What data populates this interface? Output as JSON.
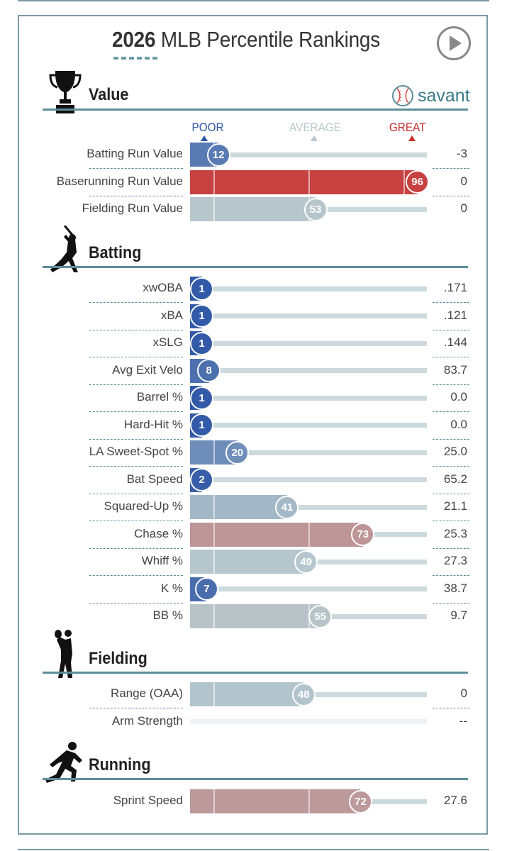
{
  "title": {
    "year": "2026",
    "text": "MLB Percentile Rankings"
  },
  "play_button": {
    "icon": "play-icon"
  },
  "brand": {
    "text": "savant",
    "icon": "baseball-icon"
  },
  "scale": {
    "poor": "POOR",
    "average": "AVERAGE",
    "great": "GREAT",
    "colors": {
      "poor": "#2d55a6",
      "average": "#b7c9cd",
      "great": "#c8302e"
    }
  },
  "chart_data": {
    "type": "bar",
    "title": "2026 MLB Percentile Rankings",
    "xlim": [
      0,
      100
    ],
    "sections": [
      {
        "id": "value",
        "name": "Value",
        "icon": "trophy-icon",
        "metrics": [
          {
            "label": "Batting Run Value",
            "percentile": 12,
            "value": "-3"
          },
          {
            "label": "Baserunning Run Value",
            "percentile": 96,
            "value": "0"
          },
          {
            "label": "Fielding Run Value",
            "percentile": 53,
            "value": "0"
          }
        ]
      },
      {
        "id": "batting",
        "name": "Batting",
        "icon": "batter-icon",
        "metrics": [
          {
            "label": "xwOBA",
            "percentile": 1,
            "value": ".171"
          },
          {
            "label": "xBA",
            "percentile": 1,
            "value": ".121"
          },
          {
            "label": "xSLG",
            "percentile": 1,
            "value": ".144"
          },
          {
            "label": "Avg Exit Velo",
            "percentile": 8,
            "value": "83.7"
          },
          {
            "label": "Barrel %",
            "percentile": 1,
            "value": "0.0"
          },
          {
            "label": "Hard-Hit %",
            "percentile": 1,
            "value": "0.0"
          },
          {
            "label": "LA Sweet-Spot %",
            "percentile": 20,
            "value": "25.0"
          },
          {
            "label": "Bat Speed",
            "percentile": 2,
            "value": "65.2"
          },
          {
            "label": "Squared-Up %",
            "percentile": 41,
            "value": "21.1"
          },
          {
            "label": "Chase %",
            "percentile": 73,
            "value": "25.3"
          },
          {
            "label": "Whiff %",
            "percentile": 49,
            "value": "27.3"
          },
          {
            "label": "K %",
            "percentile": 7,
            "value": "38.7"
          },
          {
            "label": "BB %",
            "percentile": 55,
            "value": "9.7"
          }
        ]
      },
      {
        "id": "fielding",
        "name": "Fielding",
        "icon": "fielder-icon",
        "metrics": [
          {
            "label": "Range (OAA)",
            "percentile": 48,
            "value": "0"
          },
          {
            "label": "Arm Strength",
            "percentile": null,
            "value": "--"
          }
        ]
      },
      {
        "id": "running",
        "name": "Running",
        "icon": "runner-icon",
        "metrics": [
          {
            "label": "Sprint Speed",
            "percentile": 72,
            "value": "27.6"
          }
        ]
      }
    ]
  }
}
